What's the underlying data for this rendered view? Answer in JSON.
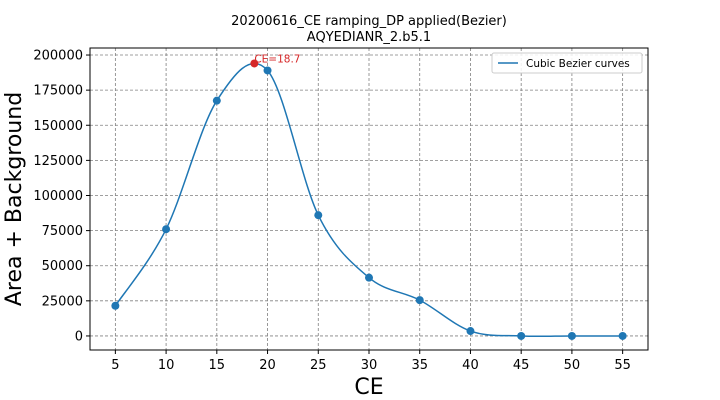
{
  "chart_data": {
    "type": "line",
    "title_line1": "20200616_CE ramping_DP applied(Bezier)",
    "title_line2": "AQYEDIANR_2.b5.1",
    "xlabel": "CE",
    "ylabel": "Area + Background",
    "xlim": [
      2.5,
      57.5
    ],
    "ylim": [
      -10000,
      205000
    ],
    "x_ticks": [
      5,
      10,
      15,
      20,
      25,
      30,
      35,
      40,
      45,
      50,
      55
    ],
    "y_ticks": [
      0,
      25000,
      50000,
      75000,
      100000,
      125000,
      150000,
      175000,
      200000
    ],
    "grid": true,
    "legend_position": "top-right",
    "series": [
      {
        "name": "Cubic Bezier curves",
        "color": "#1f77b4",
        "x": [
          5,
          10,
          15,
          20,
          25,
          30,
          35,
          40,
          45,
          50,
          55
        ],
        "y": [
          21500,
          76000,
          167500,
          189000,
          86000,
          41500,
          25500,
          3500,
          0,
          0,
          0
        ]
      }
    ],
    "annotation": {
      "text": "CE=18.7",
      "x": 18.7,
      "y": 194000,
      "color": "#d62728"
    }
  }
}
